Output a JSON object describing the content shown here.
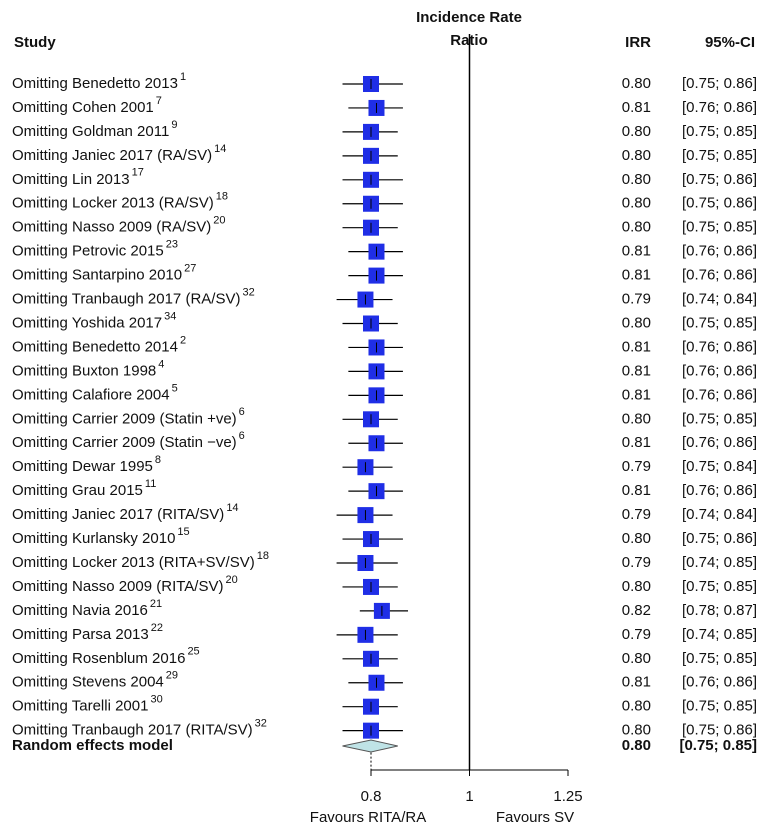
{
  "chart_data": {
    "type": "forest",
    "study_header": "Study",
    "x_label_lines": [
      "Incidence Rate",
      "Ratio"
    ],
    "irr_header": "IRR",
    "ci_header": "95%-CI",
    "categories": [
      "Omitting Benedetto 2013",
      "Omitting Cohen 2001",
      "Omitting Goldman 2011",
      "Omitting Janiec 2017 (RA/SV)",
      "Omitting Lin 2013",
      "Omitting Locker 2013 (RA/SV)",
      "Omitting Nasso 2009 (RA/SV)",
      "Omitting Petrovic 2015",
      "Omitting Santarpino 2010",
      "Omitting Tranbaugh 2017 (RA/SV)",
      "Omitting Yoshida 2017",
      "Omitting Benedetto 2014",
      "Omitting Buxton 1998",
      "Omitting Calafiore 2004",
      "Omitting Carrier 2009 (Statin +ve)",
      "Omitting Carrier 2009 (Statin −ve)",
      "Omitting Dewar 1995",
      "Omitting Grau 2015",
      "Omitting Janiec 2017 (RITA/SV)",
      "Omitting Kurlansky 2010",
      "Omitting Locker 2013 (RITA+SV/SV)",
      "Omitting Nasso 2009 (RITA/SV)",
      "Omitting Navia 2016",
      "Omitting Parsa 2013",
      "Omitting Rosenblum 2016",
      "Omitting Stevens 2004",
      "Omitting Tarelli 2001",
      "Omitting Tranbaugh 2017 (RITA/SV)"
    ],
    "refs": [
      "1",
      "7",
      "9",
      "14",
      "17",
      "18",
      "20",
      "23",
      "27",
      "32",
      "34",
      "2",
      "4",
      "5",
      "6",
      "6",
      "8",
      "11",
      "14",
      "15",
      "18",
      "20",
      "21",
      "22",
      "25",
      "29",
      "30",
      "32"
    ],
    "values": [
      0.8,
      0.81,
      0.8,
      0.8,
      0.8,
      0.8,
      0.8,
      0.81,
      0.81,
      0.79,
      0.8,
      0.81,
      0.81,
      0.81,
      0.8,
      0.81,
      0.79,
      0.81,
      0.79,
      0.8,
      0.79,
      0.8,
      0.82,
      0.79,
      0.8,
      0.81,
      0.8,
      0.8
    ],
    "value_labels": [
      "0.80",
      "0.81",
      "0.80",
      "0.80",
      "0.80",
      "0.80",
      "0.80",
      "0.81",
      "0.81",
      "0.79",
      "0.80",
      "0.81",
      "0.81",
      "0.81",
      "0.80",
      "0.81",
      "0.79",
      "0.81",
      "0.79",
      "0.80",
      "0.79",
      "0.80",
      "0.82",
      "0.79",
      "0.80",
      "0.81",
      "0.80",
      "0.80"
    ],
    "lower": [
      0.75,
      0.76,
      0.75,
      0.75,
      0.75,
      0.75,
      0.75,
      0.76,
      0.76,
      0.74,
      0.75,
      0.76,
      0.76,
      0.76,
      0.75,
      0.76,
      0.75,
      0.76,
      0.74,
      0.75,
      0.74,
      0.75,
      0.78,
      0.74,
      0.75,
      0.76,
      0.75,
      0.75
    ],
    "upper": [
      0.86,
      0.86,
      0.85,
      0.85,
      0.86,
      0.86,
      0.85,
      0.86,
      0.86,
      0.84,
      0.85,
      0.86,
      0.86,
      0.86,
      0.85,
      0.86,
      0.84,
      0.86,
      0.84,
      0.86,
      0.85,
      0.85,
      0.87,
      0.85,
      0.85,
      0.86,
      0.85,
      0.86
    ],
    "ci_labels": [
      "[0.75; 0.86]",
      "[0.76; 0.86]",
      "[0.75; 0.85]",
      "[0.75; 0.85]",
      "[0.75; 0.86]",
      "[0.75; 0.86]",
      "[0.75; 0.85]",
      "[0.76; 0.86]",
      "[0.76; 0.86]",
      "[0.74; 0.84]",
      "[0.75; 0.85]",
      "[0.76; 0.86]",
      "[0.76; 0.86]",
      "[0.76; 0.86]",
      "[0.75; 0.85]",
      "[0.76; 0.86]",
      "[0.75; 0.84]",
      "[0.76; 0.86]",
      "[0.74; 0.84]",
      "[0.75; 0.86]",
      "[0.74; 0.85]",
      "[0.75; 0.85]",
      "[0.78; 0.87]",
      "[0.74; 0.85]",
      "[0.75; 0.85]",
      "[0.76; 0.86]",
      "[0.75; 0.85]",
      "[0.75; 0.86]"
    ],
    "summary": {
      "name": "Random effects model",
      "value": 0.8,
      "value_label": "0.80",
      "lower": 0.75,
      "upper": 0.85,
      "ci_label": "[0.75; 0.85]"
    },
    "xlim": [
      0.8,
      1.25
    ],
    "xticks": [
      0.8,
      1,
      1.25
    ],
    "log_x": true,
    "reference_line": 1,
    "favours": [
      "Favours RITA/RA",
      "Favours SV"
    ],
    "color": "#1f2ee6",
    "summary_color": "#bfe3e6"
  }
}
